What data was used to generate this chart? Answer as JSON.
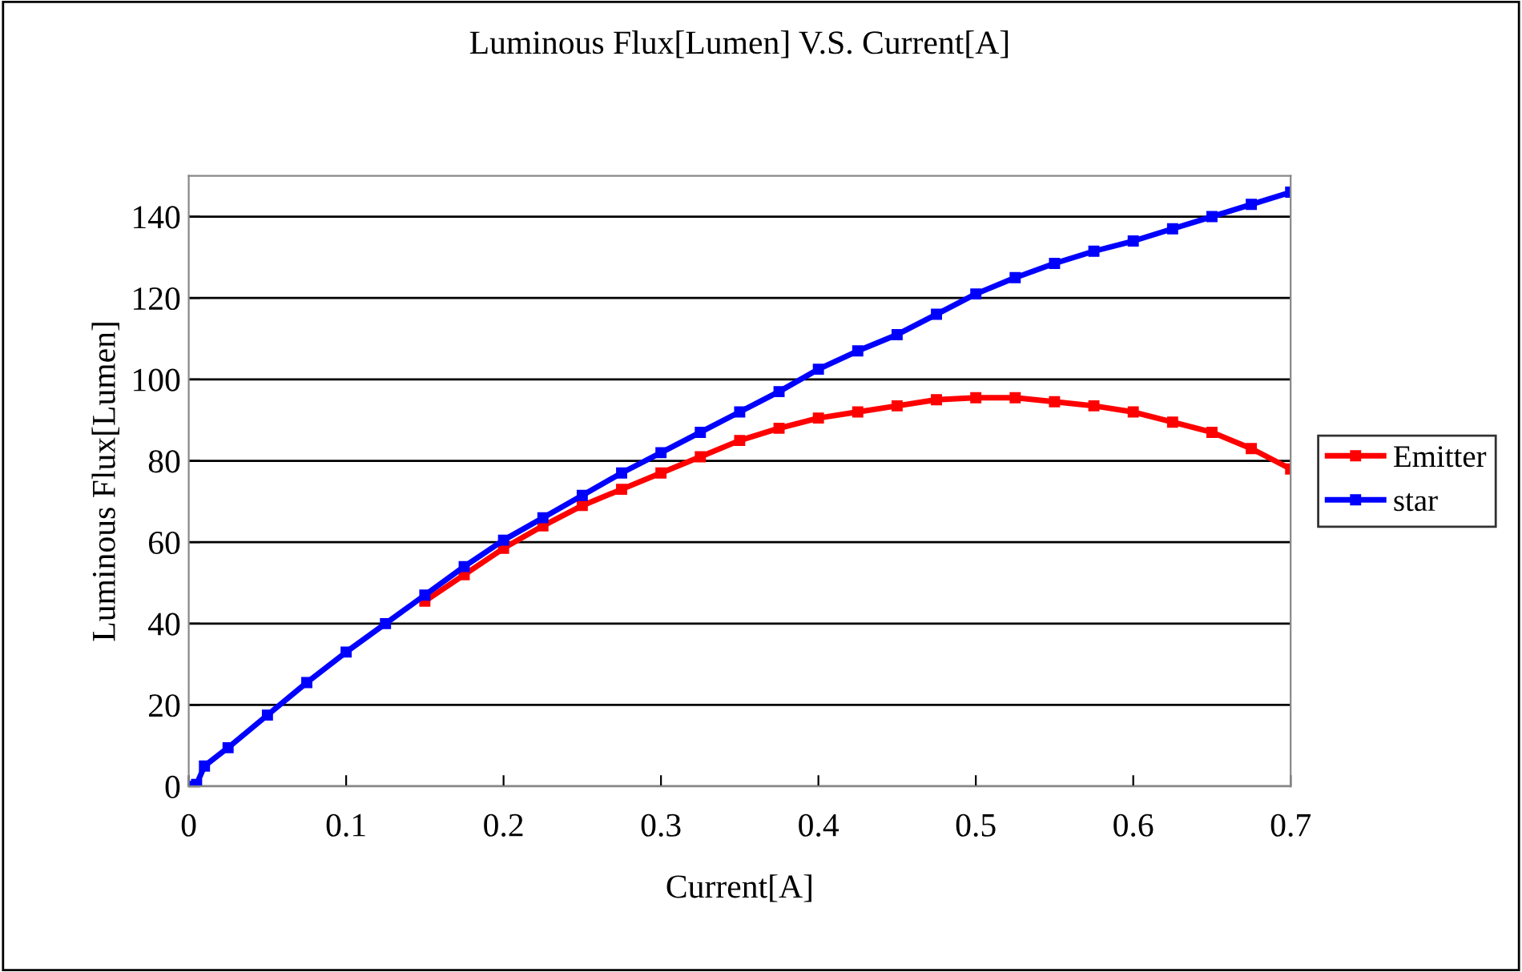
{
  "chart_data": {
    "type": "line",
    "title": "Luminous Flux[Lumen] V.S. Current[A]",
    "xlabel": "Current[A]",
    "ylabel": "Luminous Flux[Lumen]",
    "x": [
      0,
      0.005,
      0.01,
      0.025,
      0.05,
      0.075,
      0.1,
      0.125,
      0.15,
      0.175,
      0.2,
      0.225,
      0.25,
      0.275,
      0.3,
      0.325,
      0.35,
      0.375,
      0.4,
      0.425,
      0.45,
      0.475,
      0.5,
      0.525,
      0.55,
      0.575,
      0.6,
      0.625,
      0.65,
      0.675,
      0.7
    ],
    "series": [
      {
        "name": "Emitter",
        "color": "#ff0000",
        "values": [
          null,
          null,
          null,
          null,
          null,
          null,
          null,
          null,
          45.5,
          52,
          58.5,
          64,
          69,
          73,
          77,
          81,
          85,
          88,
          90.5,
          92,
          93.5,
          95,
          95.5,
          95.5,
          94.5,
          93.5,
          92,
          89.5,
          87,
          83,
          78
        ]
      },
      {
        "name": "star",
        "color": "#0000ff",
        "values": [
          0,
          0.5,
          5,
          9.5,
          17.5,
          25.5,
          33,
          40,
          47,
          54,
          60.5,
          66,
          71.5,
          77,
          82,
          87,
          92,
          97,
          102.5,
          107,
          111,
          116,
          121,
          125,
          128.5,
          131.5,
          134,
          137,
          140,
          143,
          146
        ]
      }
    ],
    "xlim": [
      0,
      0.7
    ],
    "xticks": [
      0,
      0.1,
      0.2,
      0.3,
      0.4,
      0.5,
      0.6,
      0.7
    ],
    "ylim": [
      0,
      150
    ],
    "yticks": [
      0,
      20,
      40,
      60,
      80,
      100,
      120,
      140
    ],
    "grid": "y",
    "legend": "right",
    "marker": "square",
    "line_style": "solid"
  }
}
